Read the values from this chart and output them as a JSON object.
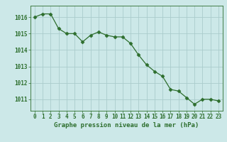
{
  "x": [
    0,
    1,
    2,
    3,
    4,
    5,
    6,
    7,
    8,
    9,
    10,
    11,
    12,
    13,
    14,
    15,
    16,
    17,
    18,
    19,
    20,
    21,
    22,
    23
  ],
  "y": [
    1016.0,
    1016.2,
    1016.2,
    1015.3,
    1015.0,
    1015.0,
    1014.5,
    1014.9,
    1015.1,
    1014.9,
    1014.8,
    1014.8,
    1014.4,
    1013.7,
    1013.1,
    1012.7,
    1012.4,
    1011.6,
    1011.5,
    1011.1,
    1010.7,
    1011.0,
    1011.0,
    1010.9
  ],
  "line_color": "#2d6e2d",
  "marker_color": "#2d6e2d",
  "bg_color": "#cce8e8",
  "grid_color": "#aacccc",
  "xlabel": "Graphe pression niveau de la mer (hPa)",
  "xlabel_color": "#2d6e2d",
  "tick_color": "#2d6e2d",
  "ylabel_ticks": [
    1011,
    1012,
    1013,
    1014,
    1015,
    1016
  ],
  "ylim": [
    1010.3,
    1016.7
  ],
  "xlim": [
    -0.5,
    23.5
  ],
  "xtick_labels": [
    "0",
    "1",
    "2",
    "3",
    "4",
    "5",
    "6",
    "7",
    "8",
    "9",
    "10",
    "11",
    "12",
    "13",
    "14",
    "15",
    "16",
    "17",
    "18",
    "19",
    "20",
    "21",
    "22",
    "23"
  ]
}
